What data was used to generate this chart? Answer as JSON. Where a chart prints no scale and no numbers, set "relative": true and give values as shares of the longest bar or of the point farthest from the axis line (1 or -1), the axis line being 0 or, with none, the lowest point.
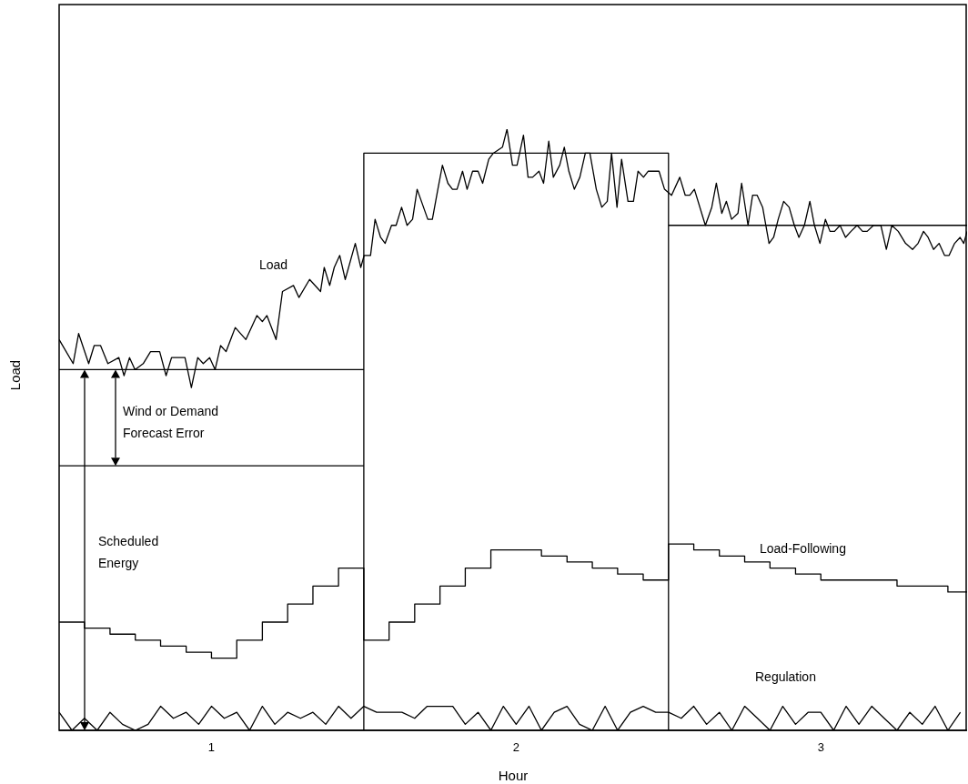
{
  "chart_data": {
    "type": "line",
    "relative": true,
    "xlabel": "Hour",
    "ylabel": "Load",
    "xlim": [
      0.5,
      3.48
    ],
    "xticks": [
      1,
      2,
      3
    ],
    "grid": false,
    "legend": false,
    "marker": "none",
    "line_style": "solid",
    "annotations": [
      "Load",
      "Wind or Demand Forecast Error",
      "Scheduled Energy",
      "Load-Following",
      "Regulation"
    ],
    "series": [
      {
        "color": "#000000",
        "x": [
          0.5,
          0.546,
          0.564,
          0.597,
          0.615,
          0.636,
          0.66,
          0.696,
          0.713,
          0.731,
          0.749,
          0.776,
          0.8,
          0.83,
          0.851,
          0.869,
          0.899,
          0.913,
          0.934,
          0.955,
          0.973,
          0.994,
          1.012,
          1.03,
          1.048,
          1.078,
          1.113,
          1.149,
          1.167,
          1.182,
          1.212,
          1.233,
          1.269,
          1.287,
          1.322,
          1.358,
          1.37,
          1.388,
          1.403,
          1.421,
          1.439,
          1.472,
          1.49,
          1.501,
          1.522,
          1.537,
          1.555,
          1.57,
          1.591,
          1.606,
          1.624,
          1.642,
          1.66,
          1.675,
          1.71,
          1.725,
          1.743,
          1.758,
          1.776,
          1.791,
          1.806,
          1.824,
          1.839,
          1.857,
          1.875,
          1.89,
          1.91,
          1.925,
          1.955,
          1.97,
          1.988,
          2.003,
          2.024,
          2.039,
          2.054,
          2.075,
          2.09,
          2.107,
          2.122,
          2.143,
          2.158,
          2.173,
          2.191,
          2.209,
          2.227,
          2.242,
          2.263,
          2.281,
          2.299,
          2.313,
          2.331,
          2.346,
          2.367,
          2.385,
          2.4,
          2.418,
          2.433,
          2.451,
          2.469,
          2.487,
          2.51,
          2.537,
          2.555,
          2.57,
          2.585,
          2.621,
          2.642,
          2.657,
          2.675,
          2.69,
          2.707,
          2.728,
          2.74,
          2.761,
          2.776,
          2.791,
          2.809,
          2.83,
          2.845,
          2.86,
          2.878,
          2.896,
          2.913,
          2.928,
          2.946,
          2.964,
          2.979,
          2.997,
          3.015,
          3.03,
          3.045,
          3.063,
          3.081,
          3.099,
          3.119,
          3.137,
          3.152,
          3.173,
          3.197,
          3.215,
          3.233,
          3.254,
          3.278,
          3.301,
          3.319,
          3.337,
          3.352,
          3.37,
          3.388,
          3.406,
          3.421,
          3.439,
          3.457,
          3.469,
          3.48
        ],
        "values": [
          0.65,
          0.61,
          0.66,
          0.61,
          0.64,
          0.64,
          0.61,
          0.62,
          0.59,
          0.62,
          0.6,
          0.61,
          0.63,
          0.63,
          0.59,
          0.62,
          0.62,
          0.62,
          0.57,
          0.62,
          0.61,
          0.62,
          0.6,
          0.64,
          0.63,
          0.67,
          0.65,
          0.69,
          0.68,
          0.69,
          0.65,
          0.73,
          0.74,
          0.72,
          0.75,
          0.73,
          0.77,
          0.74,
          0.77,
          0.79,
          0.75,
          0.81,
          0.77,
          0.79,
          0.79,
          0.85,
          0.82,
          0.81,
          0.84,
          0.84,
          0.87,
          0.84,
          0.85,
          0.9,
          0.85,
          0.85,
          0.9,
          0.94,
          0.91,
          0.9,
          0.9,
          0.93,
          0.9,
          0.93,
          0.93,
          0.91,
          0.95,
          0.96,
          0.97,
          1.0,
          0.94,
          0.94,
          0.99,
          0.92,
          0.92,
          0.93,
          0.91,
          0.98,
          0.92,
          0.94,
          0.97,
          0.93,
          0.9,
          0.92,
          0.96,
          0.96,
          0.9,
          0.87,
          0.88,
          0.96,
          0.87,
          0.95,
          0.88,
          0.88,
          0.93,
          0.92,
          0.93,
          0.93,
          0.93,
          0.9,
          0.89,
          0.92,
          0.89,
          0.89,
          0.9,
          0.84,
          0.87,
          0.91,
          0.86,
          0.88,
          0.85,
          0.86,
          0.91,
          0.84,
          0.89,
          0.89,
          0.87,
          0.81,
          0.82,
          0.85,
          0.88,
          0.87,
          0.84,
          0.82,
          0.84,
          0.88,
          0.84,
          0.81,
          0.85,
          0.83,
          0.83,
          0.84,
          0.82,
          0.83,
          0.84,
          0.83,
          0.83,
          0.84,
          0.84,
          0.8,
          0.84,
          0.83,
          0.81,
          0.8,
          0.81,
          0.83,
          0.82,
          0.8,
          0.81,
          0.79,
          0.79,
          0.81,
          0.82,
          0.81,
          0.83
        ]
      },
      {
        "color": "#000000",
        "x": [
          0.5,
          1.5,
          1.5,
          1.5,
          2.5,
          2.5,
          2.5,
          3.48
        ],
        "values": [
          0.6,
          0.6,
          0,
          0.96,
          0.96,
          0,
          0.84,
          0.84
        ]
      },
      {
        "color": "#000000",
        "x": [
          0.5,
          1.5
        ],
        "values": [
          0.44,
          0.44
        ]
      },
      {
        "type": "step",
        "color": "#000000",
        "x": [
          0.5,
          0.583,
          0.667,
          0.75,
          0.833,
          0.917,
          1.0,
          1.083,
          1.167,
          1.25,
          1.333,
          1.417,
          1.5,
          1.583,
          1.667,
          1.75,
          1.833,
          1.917,
          2.0,
          2.083,
          2.167,
          2.25,
          2.333,
          2.417,
          2.5,
          2.583,
          2.667,
          2.75,
          2.833,
          2.917,
          3.0,
          3.083,
          3.167,
          3.25,
          3.333,
          3.417,
          3.48
        ],
        "values": [
          0.18,
          0.17,
          0.16,
          0.15,
          0.14,
          0.13,
          0.12,
          0.15,
          0.18,
          0.21,
          0.24,
          0.27,
          0.15,
          0.18,
          0.21,
          0.24,
          0.27,
          0.3,
          0.3,
          0.29,
          0.28,
          0.27,
          0.26,
          0.25,
          0.31,
          0.3,
          0.29,
          0.28,
          0.27,
          0.26,
          0.25,
          0.25,
          0.25,
          0.24,
          0.24,
          0.23,
          0.23
        ]
      },
      {
        "color": "#000000",
        "x": [
          0.5,
          0.542,
          0.583,
          0.625,
          0.667,
          0.708,
          0.75,
          0.792,
          0.833,
          0.875,
          0.917,
          0.958,
          1.0,
          1.042,
          1.083,
          1.125,
          1.167,
          1.208,
          1.25,
          1.292,
          1.333,
          1.375,
          1.417,
          1.458,
          1.5,
          1.542,
          1.583,
          1.625,
          1.667,
          1.708,
          1.75,
          1.792,
          1.833,
          1.875,
          1.917,
          1.958,
          2.0,
          2.042,
          2.083,
          2.125,
          2.167,
          2.208,
          2.25,
          2.292,
          2.333,
          2.375,
          2.417,
          2.458,
          2.5,
          2.542,
          2.583,
          2.625,
          2.667,
          2.708,
          2.75,
          2.792,
          2.833,
          2.875,
          2.917,
          2.958,
          3.0,
          3.042,
          3.083,
          3.125,
          3.167,
          3.208,
          3.25,
          3.292,
          3.333,
          3.375,
          3.417,
          3.458
        ],
        "values": [
          0.03,
          0.0,
          0.02,
          0.0,
          0.03,
          0.01,
          0.0,
          0.01,
          0.04,
          0.02,
          0.03,
          0.01,
          0.04,
          0.02,
          0.03,
          0.0,
          0.04,
          0.01,
          0.03,
          0.02,
          0.03,
          0.01,
          0.04,
          0.02,
          0.04,
          0.03,
          0.03,
          0.03,
          0.02,
          0.04,
          0.04,
          0.04,
          0.01,
          0.03,
          0.0,
          0.04,
          0.01,
          0.04,
          0.0,
          0.03,
          0.04,
          0.01,
          0.0,
          0.04,
          0.0,
          0.03,
          0.04,
          0.03,
          0.03,
          0.02,
          0.04,
          0.01,
          0.03,
          0.0,
          0.04,
          0.02,
          0.0,
          0.04,
          0.01,
          0.03,
          0.03,
          0.0,
          0.04,
          0.01,
          0.04,
          0.02,
          0.0,
          0.03,
          0.01,
          0.04,
          0.0,
          0.03
        ]
      }
    ]
  }
}
